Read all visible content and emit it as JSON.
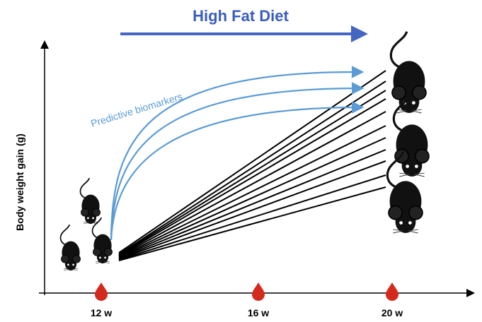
{
  "title": "High Fat Diet",
  "annotation": "Predictive biomarkers",
  "y_axis_label": "Body weight gain (g)",
  "time_labels": [
    "12 w",
    "16 w",
    "20 w"
  ]
}
